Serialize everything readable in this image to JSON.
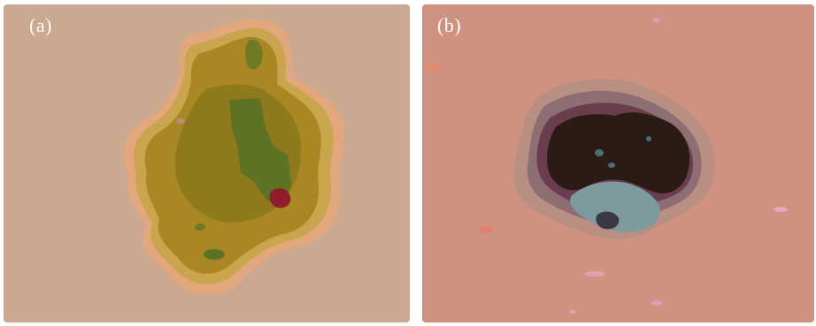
{
  "figure": {
    "panels": [
      {
        "label": "(a)",
        "background_color": "#cba991",
        "lesion_colors": [
          "#e2a77c",
          "#c9a64e",
          "#bf9a2e",
          "#a98823",
          "#8e7a1c",
          "#5d7323",
          "#8f1d2a"
        ]
      },
      {
        "label": "(b)",
        "background_color": "#cf9280",
        "lesion_colors": [
          "#b98f83",
          "#8d6f73",
          "#6b3d4f",
          "#3a1f1d",
          "#2a1c14",
          "#7d9a9e",
          "#4f6b72"
        ]
      }
    ]
  }
}
